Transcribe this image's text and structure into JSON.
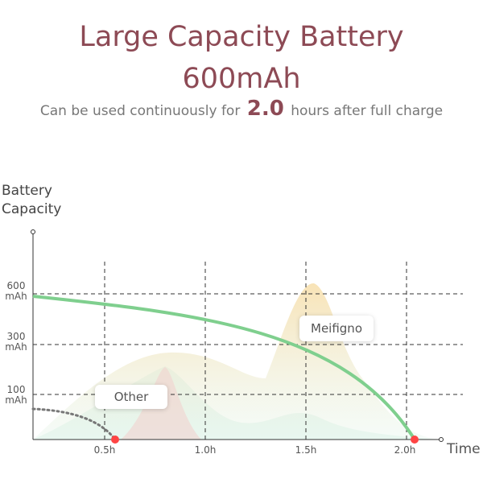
{
  "header": {
    "title": "Large Capacity Battery",
    "capacity": "600mAh",
    "subtitle_before": "Can be used continuously for",
    "subtitle_highlight": "2.0",
    "subtitle_after": "hours after full charge"
  },
  "chart": {
    "y_axis_label": "Battery\nCapacity",
    "x_axis_label": "Time",
    "y_ticks": [
      "600\nmAh",
      "300\nmAh",
      "100\nmAh"
    ],
    "x_ticks": [
      "0.5h",
      "1.0h",
      "1.5h",
      "2.0h"
    ],
    "callouts": [
      "Meifigno",
      "Other"
    ]
  }
}
